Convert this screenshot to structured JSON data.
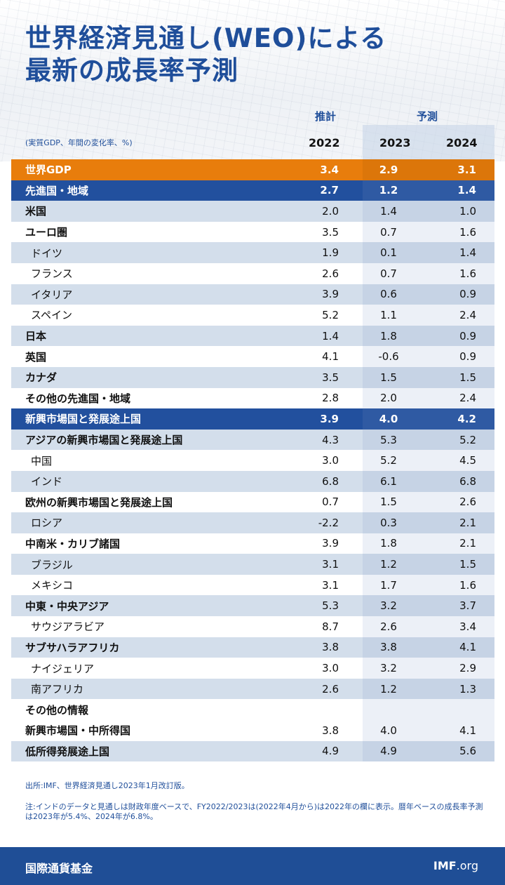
{
  "title": [
    "世界経済見通し(WEO)による",
    "最新の成長率予測"
  ],
  "header": {
    "estimate": "推計",
    "forecast": "予測",
    "unit": "(実質GDP、年間の変化率、%)",
    "years": [
      "2022",
      "2023",
      "2024"
    ]
  },
  "rows": [
    {
      "label": "世界GDP",
      "type": "world",
      "values": [
        "3.4",
        "2.9",
        "3.1"
      ]
    },
    {
      "label": "先進国・地域",
      "type": "group",
      "values": [
        "2.7",
        "1.2",
        "1.4"
      ]
    },
    {
      "label": "米国",
      "type": "bold",
      "band": "light",
      "values": [
        "2.0",
        "1.4",
        "1.0"
      ]
    },
    {
      "label": "ユーロ圏",
      "type": "bold",
      "band": "white",
      "values": [
        "3.5",
        "0.7",
        "1.6"
      ]
    },
    {
      "label": "ドイツ",
      "type": "indent",
      "band": "light",
      "values": [
        "1.9",
        "0.1",
        "1.4"
      ]
    },
    {
      "label": "フランス",
      "type": "indent",
      "band": "white",
      "values": [
        "2.6",
        "0.7",
        "1.6"
      ]
    },
    {
      "label": "イタリア",
      "type": "indent",
      "band": "light",
      "values": [
        "3.9",
        "0.6",
        "0.9"
      ]
    },
    {
      "label": "スペイン",
      "type": "indent",
      "band": "white",
      "values": [
        "5.2",
        "1.1",
        "2.4"
      ]
    },
    {
      "label": "日本",
      "type": "bold",
      "band": "light",
      "values": [
        "1.4",
        "1.8",
        "0.9"
      ]
    },
    {
      "label": "英国",
      "type": "bold",
      "band": "white",
      "values": [
        "4.1",
        "-0.6",
        "0.9"
      ]
    },
    {
      "label": "カナダ",
      "type": "bold",
      "band": "light",
      "values": [
        "3.5",
        "1.5",
        "1.5"
      ]
    },
    {
      "label": "その他の先進国・地域",
      "type": "bold",
      "band": "white",
      "values": [
        "2.8",
        "2.0",
        "2.4"
      ]
    },
    {
      "label": "新興市場国と発展途上国",
      "type": "group",
      "values": [
        "3.9",
        "4.0",
        "4.2"
      ]
    },
    {
      "label": "アジアの新興市場国と発展途上国",
      "type": "bold",
      "band": "light",
      "values": [
        "4.3",
        "5.3",
        "5.2"
      ]
    },
    {
      "label": "中国",
      "type": "indent",
      "band": "white",
      "values": [
        "3.0",
        "5.2",
        "4.5"
      ]
    },
    {
      "label": "インド",
      "type": "indent",
      "band": "light",
      "values": [
        "6.8",
        "6.1",
        "6.8"
      ]
    },
    {
      "label": "欧州の新興市場国と発展途上国",
      "type": "bold",
      "band": "white",
      "values": [
        "0.7",
        "1.5",
        "2.6"
      ]
    },
    {
      "label": "ロシア",
      "type": "indent",
      "band": "light",
      "values": [
        "-2.2",
        "0.3",
        "2.1"
      ]
    },
    {
      "label": "中南米・カリブ諸国",
      "type": "bold",
      "band": "white",
      "values": [
        "3.9",
        "1.8",
        "2.1"
      ]
    },
    {
      "label": "ブラジル",
      "type": "indent",
      "band": "light",
      "values": [
        "3.1",
        "1.2",
        "1.5"
      ]
    },
    {
      "label": "メキシコ",
      "type": "indent",
      "band": "white",
      "values": [
        "3.1",
        "1.7",
        "1.6"
      ]
    },
    {
      "label": "中東・中央アジア",
      "type": "bold",
      "band": "light",
      "values": [
        "5.3",
        "3.2",
        "3.7"
      ]
    },
    {
      "label": "サウジアラビア",
      "type": "indent",
      "band": "white",
      "values": [
        "8.7",
        "2.6",
        "3.4"
      ]
    },
    {
      "label": "サブサハラアフリカ",
      "type": "bold",
      "band": "light",
      "values": [
        "3.8",
        "3.8",
        "4.1"
      ]
    },
    {
      "label": "ナイジェリア",
      "type": "indent",
      "band": "white",
      "values": [
        "3.0",
        "3.2",
        "2.9"
      ]
    },
    {
      "label": "南アフリカ",
      "type": "indent",
      "band": "light",
      "values": [
        "2.6",
        "1.2",
        "1.3"
      ]
    },
    {
      "label": "その他の情報",
      "type": "bold",
      "band": "white",
      "values": [
        "",
        "",
        ""
      ]
    },
    {
      "label": "新興市場国・中所得国",
      "type": "bold",
      "band": "white",
      "values": [
        "3.8",
        "4.0",
        "4.1"
      ]
    },
    {
      "label": "低所得発展途上国",
      "type": "bold",
      "band": "light",
      "values": [
        "4.9",
        "4.9",
        "5.6"
      ]
    }
  ],
  "source": "出所:IMF、世界経済見通し2023年1月改訂版。",
  "note": "注:インドのデータと見通しは財政年度ベースで、FY2022/2023は(2022年4月から)は2022年の欄に表示。暦年ベースの成長率予測は2023年が5.4%、2024年が6.8%。",
  "footer": {
    "org": "国際通貨基金",
    "site_bold": "IMF",
    "site_rest": ".org"
  },
  "colors": {
    "title": "#1f4e9a",
    "world": "#e87d0c",
    "group": "#22509e",
    "band": "#d3deeb"
  }
}
